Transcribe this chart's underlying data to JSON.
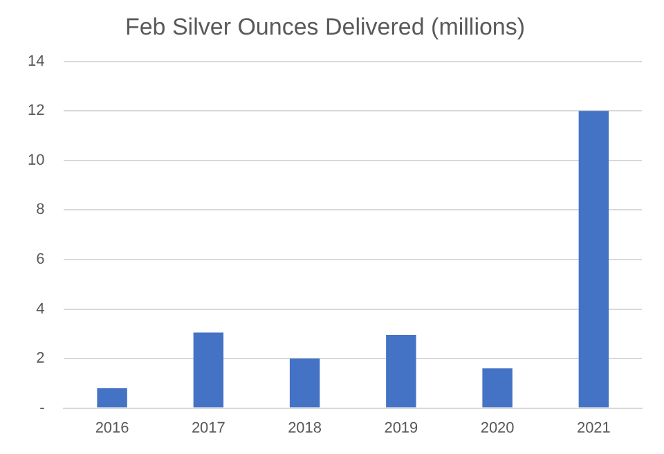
{
  "chart_data": {
    "type": "bar",
    "title": "Feb Silver Ounces Delivered (millions)",
    "categories": [
      "2016",
      "2017",
      "2018",
      "2019",
      "2020",
      "2021"
    ],
    "values": [
      0.8,
      3.05,
      2.0,
      2.95,
      1.6,
      12.0
    ],
    "color": "#4472c4",
    "ylim": [
      0,
      14
    ],
    "yticks": [
      {
        "value": 0,
        "label": "-"
      },
      2,
      4,
      6,
      8,
      10,
      12,
      14
    ],
    "grid": "y",
    "legend": false
  }
}
